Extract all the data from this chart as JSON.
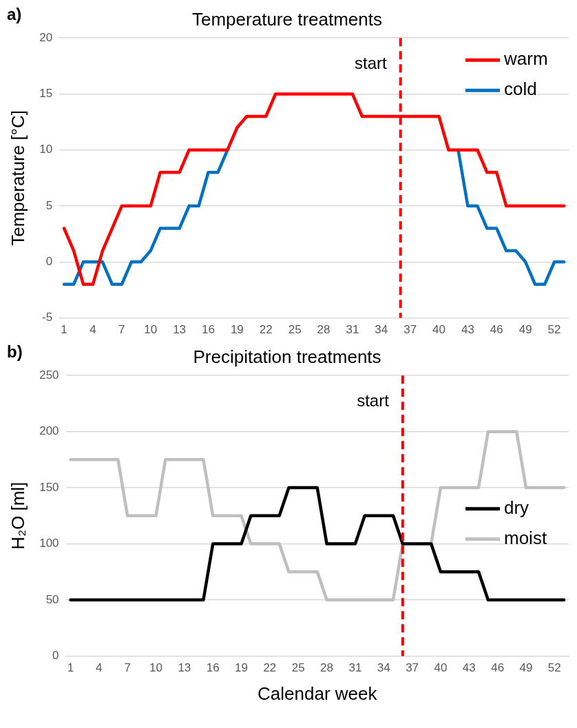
{
  "chart_data": [
    {
      "type": "line",
      "title": "Temperature treatments",
      "ylabel": "Temperature [°C]",
      "annotations": [
        "a)"
      ],
      "x": [
        1,
        2,
        3,
        4,
        5,
        6,
        7,
        8,
        9,
        10,
        11,
        12,
        13,
        14,
        15,
        16,
        17,
        18,
        19,
        20,
        21,
        22,
        23,
        24,
        25,
        26,
        27,
        28,
        29,
        30,
        31,
        32,
        33,
        34,
        35,
        36,
        37,
        38,
        39,
        40,
        41,
        42,
        43,
        44,
        45,
        46,
        47,
        48,
        49,
        50,
        51,
        52,
        53
      ],
      "xlim": [
        0.5,
        53.5
      ],
      "xticks": [
        1,
        4,
        7,
        10,
        13,
        16,
        19,
        22,
        25,
        28,
        31,
        34,
        37,
        40,
        43,
        46,
        49,
        52
      ],
      "series": [
        {
          "name": "warm",
          "color": "#ff0000",
          "values": [
            3,
            1,
            -2,
            -2,
            1,
            3,
            5,
            5,
            5,
            5,
            8,
            8,
            8,
            10,
            10,
            10,
            10,
            10,
            12,
            13,
            13,
            13,
            15,
            15,
            15,
            15,
            15,
            15,
            15,
            15,
            15,
            13,
            13,
            13,
            13,
            13,
            13,
            13,
            13,
            13,
            10,
            10,
            10,
            10,
            8,
            8,
            5,
            5,
            5,
            5,
            5,
            5,
            5
          ]
        },
        {
          "name": "cold",
          "color": "#0070c0",
          "values": [
            -2,
            -2,
            0,
            0,
            0,
            -2,
            -2,
            0,
            0,
            1,
            3,
            3,
            3,
            5,
            5,
            8,
            8,
            10,
            null,
            null,
            null,
            null,
            null,
            null,
            null,
            null,
            null,
            null,
            null,
            null,
            null,
            null,
            null,
            null,
            null,
            null,
            null,
            null,
            null,
            null,
            null,
            10,
            5,
            5,
            3,
            3,
            1,
            1,
            0,
            -2,
            -2,
            0,
            0
          ]
        }
      ],
      "ylim": [
        -5,
        20
      ],
      "yticks": [
        -5,
        0,
        5,
        10,
        15,
        20
      ],
      "grid": "y",
      "legend": "top right",
      "line_style": "solid",
      "marker": "none",
      "ref_lines": [
        {
          "axis": "x",
          "value": 36,
          "label": "start",
          "color": "#ff0000",
          "line_style": "dashed"
        }
      ]
    },
    {
      "type": "line",
      "title": "Precipitation treatments",
      "xlabel": "Calendar week",
      "ylabel": "H₂O [ml]",
      "annotations": [
        "b)"
      ],
      "x": [
        1,
        2,
        3,
        4,
        5,
        6,
        7,
        8,
        9,
        10,
        11,
        12,
        13,
        14,
        15,
        16,
        17,
        18,
        19,
        20,
        21,
        22,
        23,
        24,
        25,
        26,
        27,
        28,
        29,
        30,
        31,
        32,
        33,
        34,
        35,
        36,
        37,
        38,
        39,
        40,
        41,
        42,
        43,
        44,
        45,
        46,
        47,
        48,
        49,
        50,
        51,
        52,
        53
      ],
      "xlim": [
        0.5,
        53.5
      ],
      "xticks": [
        1,
        4,
        7,
        10,
        13,
        16,
        19,
        22,
        25,
        28,
        31,
        34,
        37,
        40,
        43,
        46,
        49,
        52
      ],
      "series": [
        {
          "name": "dry",
          "color": "#000000",
          "values": [
            50,
            50,
            50,
            50,
            50,
            50,
            50,
            50,
            50,
            50,
            50,
            50,
            50,
            50,
            50,
            100,
            100,
            100,
            100,
            125,
            125,
            125,
            125,
            150,
            150,
            150,
            150,
            100,
            100,
            100,
            100,
            125,
            125,
            125,
            125,
            100,
            100,
            100,
            100,
            75,
            75,
            75,
            75,
            75,
            50,
            50,
            50,
            50,
            50,
            50,
            50,
            50,
            50
          ]
        },
        {
          "name": "moist",
          "color": "#bfbfbf",
          "values": [
            175,
            175,
            175,
            175,
            175,
            175,
            125,
            125,
            125,
            125,
            175,
            175,
            175,
            175,
            175,
            125,
            125,
            125,
            125,
            100,
            100,
            100,
            100,
            75,
            75,
            75,
            75,
            50,
            50,
            50,
            50,
            50,
            50,
            50,
            50,
            100,
            null,
            null,
            100,
            150,
            150,
            150,
            150,
            150,
            200,
            200,
            200,
            200,
            150,
            150,
            150,
            150,
            150
          ]
        }
      ],
      "ylim": [
        0,
        250
      ],
      "yticks": [
        0,
        50,
        100,
        150,
        200,
        250
      ],
      "grid": "y",
      "legend": "right",
      "line_style": "solid",
      "marker": "none",
      "ref_lines": [
        {
          "axis": "x",
          "value": 36,
          "label": "start",
          "color": "#ff0000",
          "line_style": "dashed"
        }
      ]
    }
  ]
}
